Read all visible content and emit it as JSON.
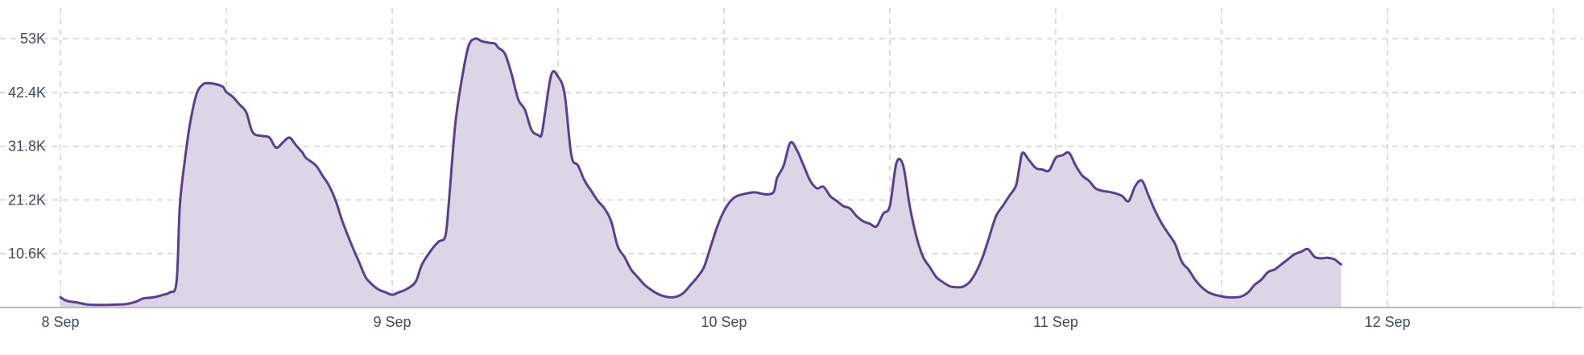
{
  "chart_data": {
    "type": "area",
    "title": "",
    "xlabel": "",
    "ylabel": "",
    "x_tick_labels": [
      "8 Sep",
      "9 Sep",
      "10 Sep",
      "11 Sep",
      "12 Sep"
    ],
    "x_tick_days": [
      0,
      1,
      2,
      3,
      4
    ],
    "y_tick_labels": [
      "10.6K",
      "21.2K",
      "31.8K",
      "42.4K",
      "53K"
    ],
    "y_tick_values": [
      10600,
      21200,
      31800,
      42400,
      53000
    ],
    "ylim": [
      0,
      53000
    ],
    "xlim_days": [
      0,
      4.72
    ],
    "grid": true,
    "colors": {
      "line": "#5b3f8c",
      "fill": "#dcd5e6",
      "grid": "#c8c8c8",
      "axis": "#bcbcbc"
    },
    "series": [
      {
        "points": [
          [
            0.0,
            2000
          ],
          [
            0.02,
            1300
          ],
          [
            0.05,
            1000
          ],
          [
            0.08,
            600
          ],
          [
            0.12,
            500
          ],
          [
            0.16,
            550
          ],
          [
            0.2,
            700
          ],
          [
            0.23,
            1200
          ],
          [
            0.25,
            1800
          ],
          [
            0.28,
            2000
          ],
          [
            0.31,
            2500
          ],
          [
            0.33,
            3000
          ],
          [
            0.35,
            5000
          ],
          [
            0.36,
            20000
          ],
          [
            0.375,
            29000
          ],
          [
            0.39,
            36000
          ],
          [
            0.41,
            42000
          ],
          [
            0.43,
            44000
          ],
          [
            0.45,
            44200
          ],
          [
            0.47,
            44000
          ],
          [
            0.49,
            43500
          ],
          [
            0.5,
            42500
          ],
          [
            0.52,
            41500
          ],
          [
            0.54,
            40000
          ],
          [
            0.56,
            38500
          ],
          [
            0.58,
            34500
          ],
          [
            0.61,
            33800
          ],
          [
            0.63,
            33500
          ],
          [
            0.65,
            31500
          ],
          [
            0.67,
            32500
          ],
          [
            0.69,
            33500
          ],
          [
            0.71,
            32000
          ],
          [
            0.73,
            30500
          ],
          [
            0.74,
            29500
          ],
          [
            0.77,
            28000
          ],
          [
            0.79,
            26000
          ],
          [
            0.81,
            24000
          ],
          [
            0.83,
            21000
          ],
          [
            0.85,
            17000
          ],
          [
            0.88,
            12000
          ],
          [
            0.9,
            9000
          ],
          [
            0.92,
            6000
          ],
          [
            0.94,
            4500
          ],
          [
            0.96,
            3500
          ],
          [
            0.98,
            3000
          ],
          [
            1.0,
            2500
          ],
          [
            1.02,
            3000
          ],
          [
            1.04,
            3500
          ],
          [
            1.07,
            5000
          ],
          [
            1.09,
            8500
          ],
          [
            1.12,
            11500
          ],
          [
            1.14,
            13000
          ],
          [
            1.16,
            14000
          ],
          [
            1.17,
            20000
          ],
          [
            1.19,
            36000
          ],
          [
            1.21,
            45000
          ],
          [
            1.23,
            51500
          ],
          [
            1.25,
            53000
          ],
          [
            1.27,
            52500
          ],
          [
            1.29,
            52200
          ],
          [
            1.31,
            52000
          ],
          [
            1.32,
            51200
          ],
          [
            1.34,
            50000
          ],
          [
            1.36,
            46000
          ],
          [
            1.38,
            41000
          ],
          [
            1.4,
            39000
          ],
          [
            1.42,
            35000
          ],
          [
            1.44,
            34000
          ],
          [
            1.45,
            34000
          ],
          [
            1.46,
            38000
          ],
          [
            1.48,
            46000
          ],
          [
            1.5,
            45500
          ],
          [
            1.52,
            42000
          ],
          [
            1.54,
            30000
          ],
          [
            1.56,
            28000
          ],
          [
            1.58,
            25000
          ],
          [
            1.6,
            23000
          ],
          [
            1.62,
            21000
          ],
          [
            1.64,
            19500
          ],
          [
            1.66,
            17000
          ],
          [
            1.68,
            12000
          ],
          [
            1.7,
            10000
          ],
          [
            1.72,
            7500
          ],
          [
            1.74,
            6000
          ],
          [
            1.76,
            4500
          ],
          [
            1.78,
            3500
          ],
          [
            1.8,
            2700
          ],
          [
            1.82,
            2200
          ],
          [
            1.84,
            2000
          ],
          [
            1.86,
            2200
          ],
          [
            1.88,
            3000
          ],
          [
            1.9,
            4500
          ],
          [
            1.92,
            6000
          ],
          [
            1.94,
            8000
          ],
          [
            1.96,
            12000
          ],
          [
            1.98,
            16000
          ],
          [
            2.0,
            19000
          ],
          [
            2.02,
            21000
          ],
          [
            2.04,
            22000
          ],
          [
            2.07,
            22500
          ],
          [
            2.09,
            22700
          ],
          [
            2.11,
            22500
          ],
          [
            2.13,
            22300
          ],
          [
            2.15,
            22800
          ],
          [
            2.16,
            25500
          ],
          [
            2.18,
            28000
          ],
          [
            2.2,
            32500
          ],
          [
            2.22,
            31000
          ],
          [
            2.24,
            28000
          ],
          [
            2.26,
            25000
          ],
          [
            2.28,
            23500
          ],
          [
            2.3,
            23800
          ],
          [
            2.32,
            22000
          ],
          [
            2.34,
            21000
          ],
          [
            2.36,
            20000
          ],
          [
            2.38,
            19500
          ],
          [
            2.4,
            18000
          ],
          [
            2.42,
            17000
          ],
          [
            2.44,
            16500
          ],
          [
            2.46,
            16000
          ],
          [
            2.48,
            18500
          ],
          [
            2.5,
            20000
          ],
          [
            2.52,
            28500
          ],
          [
            2.54,
            28000
          ],
          [
            2.56,
            20000
          ],
          [
            2.58,
            14000
          ],
          [
            2.6,
            10000
          ],
          [
            2.62,
            8000
          ],
          [
            2.64,
            6000
          ],
          [
            2.66,
            5000
          ],
          [
            2.68,
            4200
          ],
          [
            2.7,
            4000
          ],
          [
            2.72,
            4100
          ],
          [
            2.74,
            5000
          ],
          [
            2.76,
            7000
          ],
          [
            2.78,
            10000
          ],
          [
            2.8,
            14000
          ],
          [
            2.82,
            18000
          ],
          [
            2.84,
            20000
          ],
          [
            2.86,
            22000
          ],
          [
            2.88,
            24000
          ],
          [
            2.89,
            27500
          ],
          [
            2.9,
            30500
          ],
          [
            2.92,
            29000
          ],
          [
            2.94,
            27500
          ],
          [
            2.96,
            27200
          ],
          [
            2.98,
            27000
          ],
          [
            3.0,
            29500
          ],
          [
            3.02,
            30000
          ],
          [
            3.04,
            30500
          ],
          [
            3.06,
            28000
          ],
          [
            3.08,
            26000
          ],
          [
            3.1,
            25000
          ],
          [
            3.12,
            23500
          ],
          [
            3.14,
            23000
          ],
          [
            3.16,
            22800
          ],
          [
            3.18,
            22500
          ],
          [
            3.2,
            22000
          ],
          [
            3.22,
            21000
          ],
          [
            3.24,
            24000
          ],
          [
            3.26,
            25000
          ],
          [
            3.28,
            22000
          ],
          [
            3.3,
            19000
          ],
          [
            3.32,
            16500
          ],
          [
            3.34,
            14500
          ],
          [
            3.36,
            12500
          ],
          [
            3.38,
            9000
          ],
          [
            3.4,
            7500
          ],
          [
            3.42,
            5500
          ],
          [
            3.44,
            4000
          ],
          [
            3.46,
            3000
          ],
          [
            3.48,
            2500
          ],
          [
            3.5,
            2200
          ],
          [
            3.52,
            2000
          ],
          [
            3.54,
            2000
          ],
          [
            3.56,
            2200
          ],
          [
            3.58,
            3000
          ],
          [
            3.6,
            4500
          ],
          [
            3.62,
            5500
          ],
          [
            3.64,
            7000
          ],
          [
            3.66,
            7500
          ],
          [
            3.68,
            8500
          ],
          [
            3.7,
            9500
          ],
          [
            3.72,
            10500
          ],
          [
            3.74,
            11000
          ],
          [
            3.76,
            11500
          ],
          [
            3.78,
            10000
          ],
          [
            3.8,
            9700
          ],
          [
            3.82,
            9800
          ],
          [
            3.84,
            9500
          ],
          [
            3.85,
            9000
          ],
          [
            3.86,
            8500
          ]
        ]
      }
    ]
  }
}
